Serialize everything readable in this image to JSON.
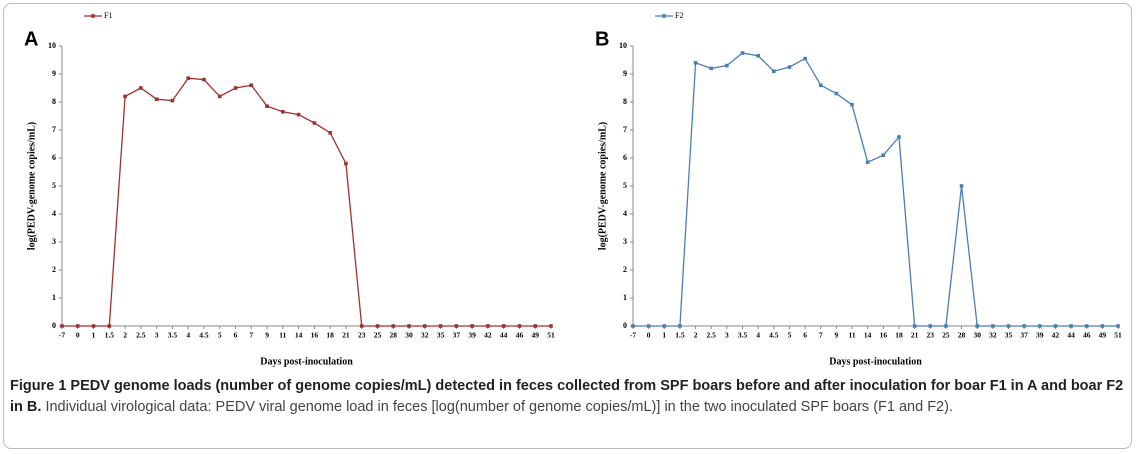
{
  "chart_data": [
    {
      "type": "line",
      "panel": "A",
      "xlabel": "Days post-inoculation",
      "ylabel": "log(PEDV-genome copies/mL)",
      "legend": "top-left",
      "categories": [
        "-7",
        "0",
        "1",
        "1.5",
        "2",
        "2.5",
        "3",
        "3.5",
        "4",
        "4.5",
        "5",
        "6",
        "7",
        "9",
        "11",
        "14",
        "16",
        "18",
        "21",
        "23",
        "25",
        "28",
        "30",
        "32",
        "35",
        "37",
        "39",
        "42",
        "44",
        "46",
        "49",
        "51"
      ],
      "series": [
        {
          "name": "F1",
          "color": "#a0322d",
          "values": [
            0,
            0,
            0,
            0,
            8.2,
            8.5,
            8.1,
            8.05,
            8.85,
            8.8,
            8.2,
            8.5,
            8.6,
            7.85,
            7.65,
            7.55,
            7.25,
            6.9,
            5.8,
            0,
            0,
            0,
            0,
            0,
            0,
            0,
            0,
            0,
            0,
            0,
            0,
            0
          ]
        }
      ],
      "ylim": [
        0,
        10
      ],
      "yticks": [
        0,
        1,
        2,
        3,
        4,
        5,
        6,
        7,
        8,
        9,
        10
      ]
    },
    {
      "type": "line",
      "panel": "B",
      "xlabel": "Days post-inoculation",
      "ylabel": "log(PEDV-genome copies/mL)",
      "legend": "top-left",
      "categories": [
        "-7",
        "0",
        "1",
        "1.5",
        "2",
        "2.5",
        "3",
        "3.5",
        "4",
        "4.5",
        "5",
        "6",
        "7",
        "9",
        "11",
        "14",
        "16",
        "18",
        "21",
        "23",
        "25",
        "28",
        "30",
        "32",
        "35",
        "37",
        "39",
        "42",
        "44",
        "46",
        "49",
        "51"
      ],
      "series": [
        {
          "name": "F2",
          "color": "#4a7fb5",
          "values": [
            0,
            0,
            0,
            0,
            9.4,
            9.2,
            9.3,
            9.75,
            9.65,
            9.1,
            9.25,
            9.55,
            8.6,
            8.3,
            7.9,
            5.85,
            6.1,
            6.75,
            0,
            0,
            0,
            5.0,
            0,
            0,
            0,
            0,
            0,
            0,
            0,
            0,
            0,
            0
          ]
        }
      ],
      "ylim": [
        0,
        10
      ],
      "yticks": [
        0,
        1,
        2,
        3,
        4,
        5,
        6,
        7,
        8,
        9,
        10
      ]
    }
  ],
  "caption": {
    "bold": "Figure 1  PEDV genome loads (number of genome copies/mL) detected in feces collected from SPF boars before and after inoculation for boar F1 in A and boar F2 in B.",
    "text": "Individual virological data: PEDV viral genome load in feces [log(number of genome copies/mL)] in the two inoculated SPF boars (F1 and F2)."
  }
}
